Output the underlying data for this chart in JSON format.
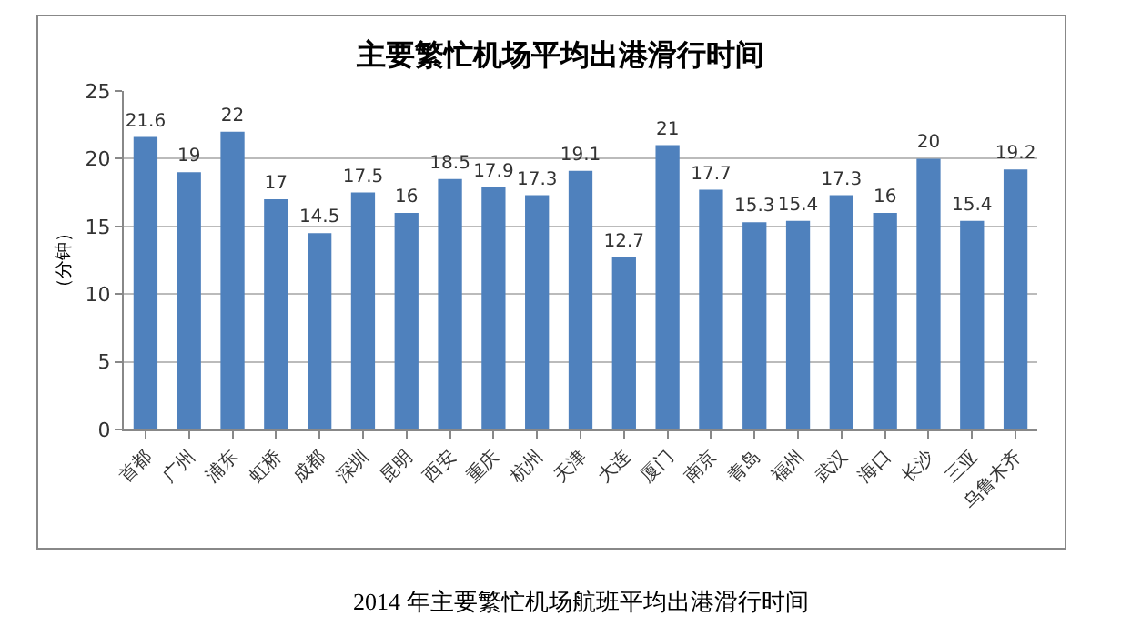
{
  "chart_data": {
    "type": "bar",
    "title": "主要繁忙机场平均出港滑行时间",
    "ylabel": "（分钟）",
    "categories": [
      "首都",
      "广州",
      "浦东",
      "虹桥",
      "成都",
      "深圳",
      "昆明",
      "西安",
      "重庆",
      "杭州",
      "天津",
      "大连",
      "厦门",
      "南京",
      "青岛",
      "福州",
      "武汉",
      "海口",
      "长沙",
      "三亚",
      "乌鲁木齐"
    ],
    "values": [
      21.6,
      19,
      22,
      17,
      14.5,
      17.5,
      16,
      18.5,
      17.9,
      17.3,
      19.1,
      12.7,
      21,
      17.7,
      15.3,
      15.4,
      17.3,
      16,
      20,
      15.4,
      19.2
    ],
    "color": "#4f81bd",
    "ylim": [
      0,
      25
    ],
    "yticks": [
      0,
      5,
      10,
      15,
      20,
      25
    ],
    "grid": "y",
    "data_labels": true,
    "annotations": [
      "2014 年主要繁忙机场航班平均出港滑行时间"
    ]
  }
}
